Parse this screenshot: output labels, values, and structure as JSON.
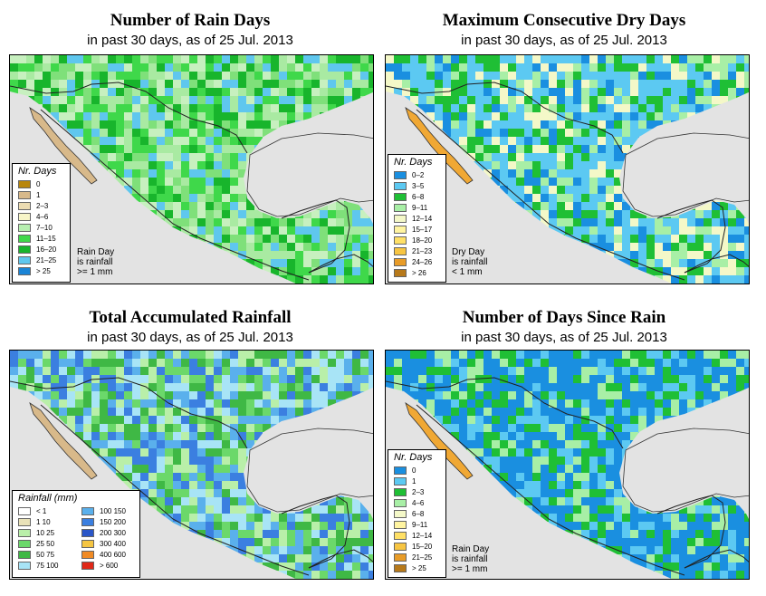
{
  "panels": [
    {
      "id": "rain-days",
      "title": "Number of Rain Days",
      "subtitle": "in past 30 days, as of  25 Jul. 2013",
      "legend_title": "Nr. Days",
      "legend": [
        {
          "label": "0",
          "color": "#b8860b"
        },
        {
          "label": "1",
          "color": "#d8b98a"
        },
        {
          "label": "2–3",
          "color": "#ecdcb2"
        },
        {
          "label": "4–6",
          "color": "#f7f5c8"
        },
        {
          "label": "7–10",
          "color": "#b7efb0"
        },
        {
          "label": "11–15",
          "color": "#3fd84a"
        },
        {
          "label": "16–20",
          "color": "#18b52c"
        },
        {
          "label": "21–25",
          "color": "#5fc7ee"
        },
        {
          "label": "> 25",
          "color": "#1a84d6"
        }
      ],
      "note": [
        "Rain Day",
        "is rainfall",
        ">= 1 mm"
      ],
      "palette": [
        "#a9eaa2",
        "#3fd84a",
        "#18b52c",
        "#5fc7ee",
        "#7fe07a",
        "#c7f0bf"
      ]
    },
    {
      "id": "dry-days",
      "title": "Maximum Consecutive Dry Days",
      "subtitle": "in past 30 days, as of  25 Jul. 2013",
      "legend_title": "Nr. Days",
      "legend": [
        {
          "label": "0–2",
          "color": "#1a8fe0"
        },
        {
          "label": "3–5",
          "color": "#5cc9f2"
        },
        {
          "label": "6–8",
          "color": "#1fbf35"
        },
        {
          "label": "9–11",
          "color": "#a8efa6"
        },
        {
          "label": "12–14",
          "color": "#f4f8c8"
        },
        {
          "label": "15–17",
          "color": "#fff4a0"
        },
        {
          "label": "18–20",
          "color": "#ffe066"
        },
        {
          "label": "21–23",
          "color": "#f7c542"
        },
        {
          "label": "24–26",
          "color": "#e89c28"
        },
        {
          "label": "> 26",
          "color": "#b7791a"
        }
      ],
      "note": [
        "Dry Day",
        "is rainfall",
        "< 1 mm"
      ],
      "palette": [
        "#5cc9f2",
        "#5cc9f2",
        "#1fbf35",
        "#a8efa6",
        "#1a8fe0",
        "#f4f8c8"
      ]
    },
    {
      "id": "total-rainfall",
      "title": "Total Accumulated Rainfall",
      "subtitle": "in past 30 days, as of  25 Jul. 2013",
      "legend_title": "Rainfall (mm)",
      "legend": [
        {
          "label": "< 1",
          "color": "#ffffff"
        },
        {
          "label": "1   10",
          "color": "#e9e2b8"
        },
        {
          "label": "10   25",
          "color": "#b9efa9"
        },
        {
          "label": "25   50",
          "color": "#6bd86a"
        },
        {
          "label": "50   75",
          "color": "#3fb845"
        },
        {
          "label": "75   100",
          "color": "#a8e4f6"
        },
        {
          "label": "100   150",
          "color": "#5ab0ec"
        },
        {
          "label": "150   200",
          "color": "#3b7fe0"
        },
        {
          "label": "200   300",
          "color": "#2a56c8"
        },
        {
          "label": "300   400",
          "color": "#f5c542"
        },
        {
          "label": "400   600",
          "color": "#f08a24"
        },
        {
          "label": "> 600",
          "color": "#e02818"
        }
      ],
      "note": [],
      "palette": [
        "#b9efa9",
        "#6bd86a",
        "#3fb845",
        "#a8e4f6",
        "#5ab0ec",
        "#3b7fe0"
      ]
    },
    {
      "id": "days-since-rain",
      "title": "Number of Days Since Rain",
      "subtitle": "in past 30 days, as of  25 Jul. 2013",
      "legend_title": "Nr. Days",
      "legend": [
        {
          "label": "0",
          "color": "#1a8fe0"
        },
        {
          "label": "1",
          "color": "#5cc9f2"
        },
        {
          "label": "2–3",
          "color": "#1fbf35"
        },
        {
          "label": "4–6",
          "color": "#a8efa6"
        },
        {
          "label": "6–8",
          "color": "#f4f8c8"
        },
        {
          "label": "9–11",
          "color": "#fff4a0"
        },
        {
          "label": "12–14",
          "color": "#ffe066"
        },
        {
          "label": "15–20",
          "color": "#f7c542"
        },
        {
          "label": "21–25",
          "color": "#e89c28"
        },
        {
          "label": "> 25",
          "color": "#b7791a"
        }
      ],
      "note": [
        "Rain Day",
        "is rainfall",
        ">= 1 mm"
      ],
      "palette": [
        "#1a8fe0",
        "#1a8fe0",
        "#5cc9f2",
        "#1fbf35",
        "#a8efa6",
        "#1a8fe0"
      ]
    }
  ]
}
